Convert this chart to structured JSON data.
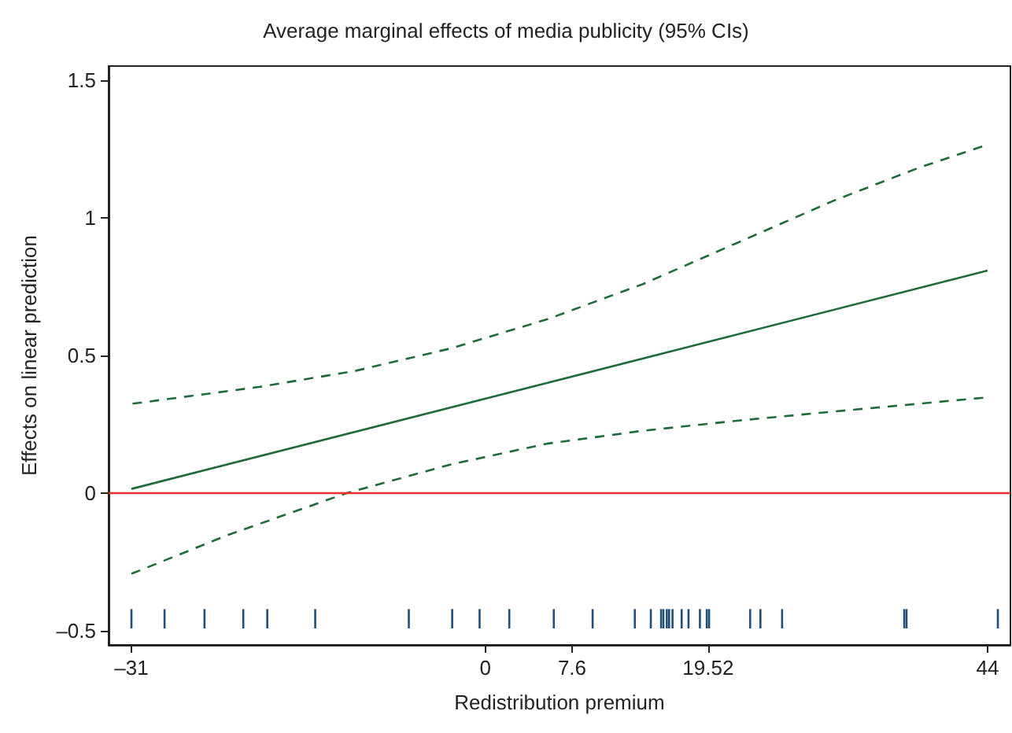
{
  "chart_data": {
    "type": "line",
    "title": "Average marginal effects of media publicity (95% CIs)",
    "xlabel": "Redistribution premium",
    "ylabel": "Effects on linear prediction",
    "xlim": [
      -33,
      46
    ],
    "xticks": [
      {
        "value": -31,
        "label": "–31"
      },
      0,
      7.6,
      19.52,
      44
    ],
    "ylim": [
      -0.55,
      1.55
    ],
    "yticks": [
      {
        "value": -0.5,
        "label": "–0.5"
      },
      0,
      0.5,
      1,
      1.5
    ],
    "grid": false,
    "series": [
      {
        "type": "line",
        "color": "#1e6b3a",
        "line_style": "solid",
        "x": [
          -31,
          44
        ],
        "values": [
          0.016,
          0.808
        ]
      },
      {
        "color": "#1e6b3a",
        "line_style": "dashed",
        "x": [
          -30.9,
          -19.8,
          -11.4,
          -3.0,
          5.4,
          13.8,
          22.2,
          30.6,
          37.9,
          43.8
        ],
        "values": [
          0.325,
          0.386,
          0.444,
          0.526,
          0.631,
          0.759,
          0.911,
          1.063,
          1.18,
          1.262
        ]
      },
      {
        "color": "#1e6b3a",
        "line_style": "dashed",
        "x": [
          -31,
          -22.6,
          -12.2,
          -3.0,
          5.4,
          13.8,
          22.2,
          30.6,
          44
        ],
        "values": [
          -0.292,
          -0.152,
          0,
          0.105,
          0.18,
          0.227,
          0.264,
          0.297,
          0.348
        ]
      },
      {
        "type": "bar",
        "color": "#1f4e79",
        "x": [
          -31,
          -28.1,
          -24.6,
          -21.2,
          -19.1,
          -14.9,
          -6.7,
          -2.9,
          -0.5,
          2.1,
          6.0,
          9.4,
          13.1,
          14.5,
          15.4,
          15.6,
          15.9,
          16.1,
          16.4,
          17.2,
          17.8,
          18.8,
          19.4,
          19.6,
          23.2,
          24.1,
          26.0,
          36.7,
          36.9,
          44.9
        ],
        "base": [
          -0.49,
          -0.49,
          -0.49,
          -0.49,
          -0.49,
          -0.49,
          -0.49,
          -0.49,
          -0.49,
          -0.49,
          -0.49,
          -0.49,
          -0.49,
          -0.49,
          -0.49,
          -0.49,
          -0.49,
          -0.49,
          -0.49,
          -0.49,
          -0.49,
          -0.49,
          -0.49,
          -0.49,
          -0.49,
          -0.49,
          -0.49,
          -0.49,
          -0.49,
          -0.49
        ],
        "values": [
          0.07,
          0.07,
          0.07,
          0.07,
          0.07,
          0.07,
          0.07,
          0.07,
          0.07,
          0.07,
          0.07,
          0.07,
          0.07,
          0.07,
          0.07,
          0.07,
          0.07,
          0.07,
          0.07,
          0.07,
          0.07,
          0.07,
          0.07,
          0.07,
          0.07,
          0.07,
          0.07,
          0.07,
          0.07,
          0.07
        ]
      }
    ],
    "ref_lines": [
      {
        "axis": "y",
        "value": 0,
        "color": "#e8302f",
        "line_style": "solid"
      }
    ]
  }
}
